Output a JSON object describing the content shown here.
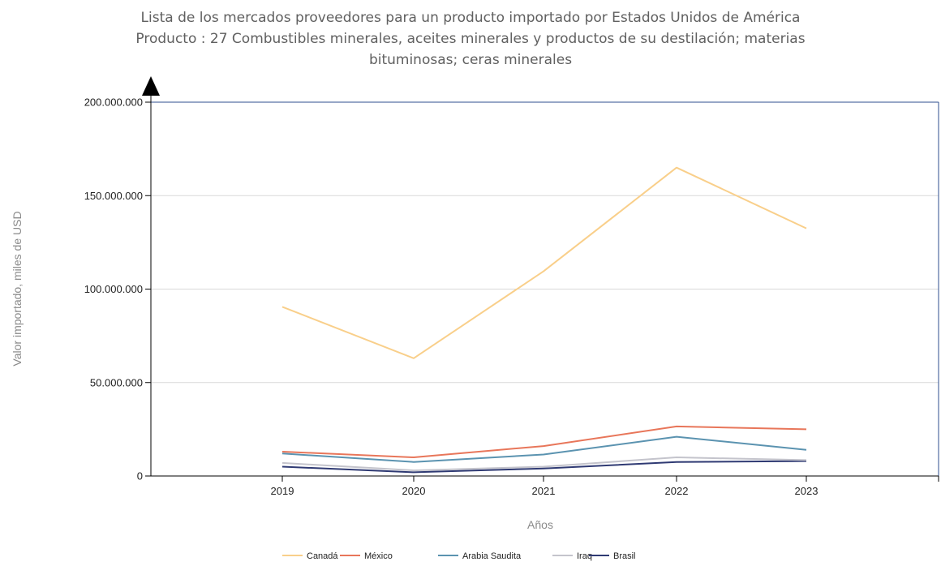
{
  "chart_data": {
    "type": "line",
    "title": [
      "Lista de los mercados proveedores para un producto importado por Estados Unidos de América",
      "Producto : 27 Combustibles minerales, aceites minerales y productos de su destilación; materias",
      "bituminosas; ceras minerales"
    ],
    "xlabel": "Años",
    "ylabel": "Valor importado, miles de USD",
    "x": [
      "2019",
      "2020",
      "2021",
      "2022",
      "2023"
    ],
    "ylim": [
      0,
      200000000
    ],
    "yticks": [
      0,
      50000000,
      100000000,
      150000000,
      200000000
    ],
    "ytick_labels": [
      "0",
      "50.000.000",
      "100.000.000",
      "150.000.000",
      "200.000.000"
    ],
    "grid": true,
    "legend_position": "bottom-center",
    "series": [
      {
        "name": "Canadá",
        "color": "#f9cf8a",
        "values": [
          90500000,
          63000000,
          109500000,
          165000000,
          132500000
        ]
      },
      {
        "name": "México",
        "color": "#e8765a",
        "values": [
          13000000,
          10000000,
          16000000,
          26500000,
          25000000
        ]
      },
      {
        "name": "Arabia Saudita",
        "color": "#5b93b0",
        "values": [
          12000000,
          7500000,
          11500000,
          21000000,
          14000000
        ]
      },
      {
        "name": "Iraq",
        "color": "#c4c4cc",
        "values": [
          7000000,
          3000000,
          5000000,
          10000000,
          8500000
        ]
      },
      {
        "name": "Brasil",
        "color": "#2f3a73",
        "values": [
          5000000,
          2000000,
          4000000,
          7500000,
          8000000
        ]
      }
    ]
  }
}
